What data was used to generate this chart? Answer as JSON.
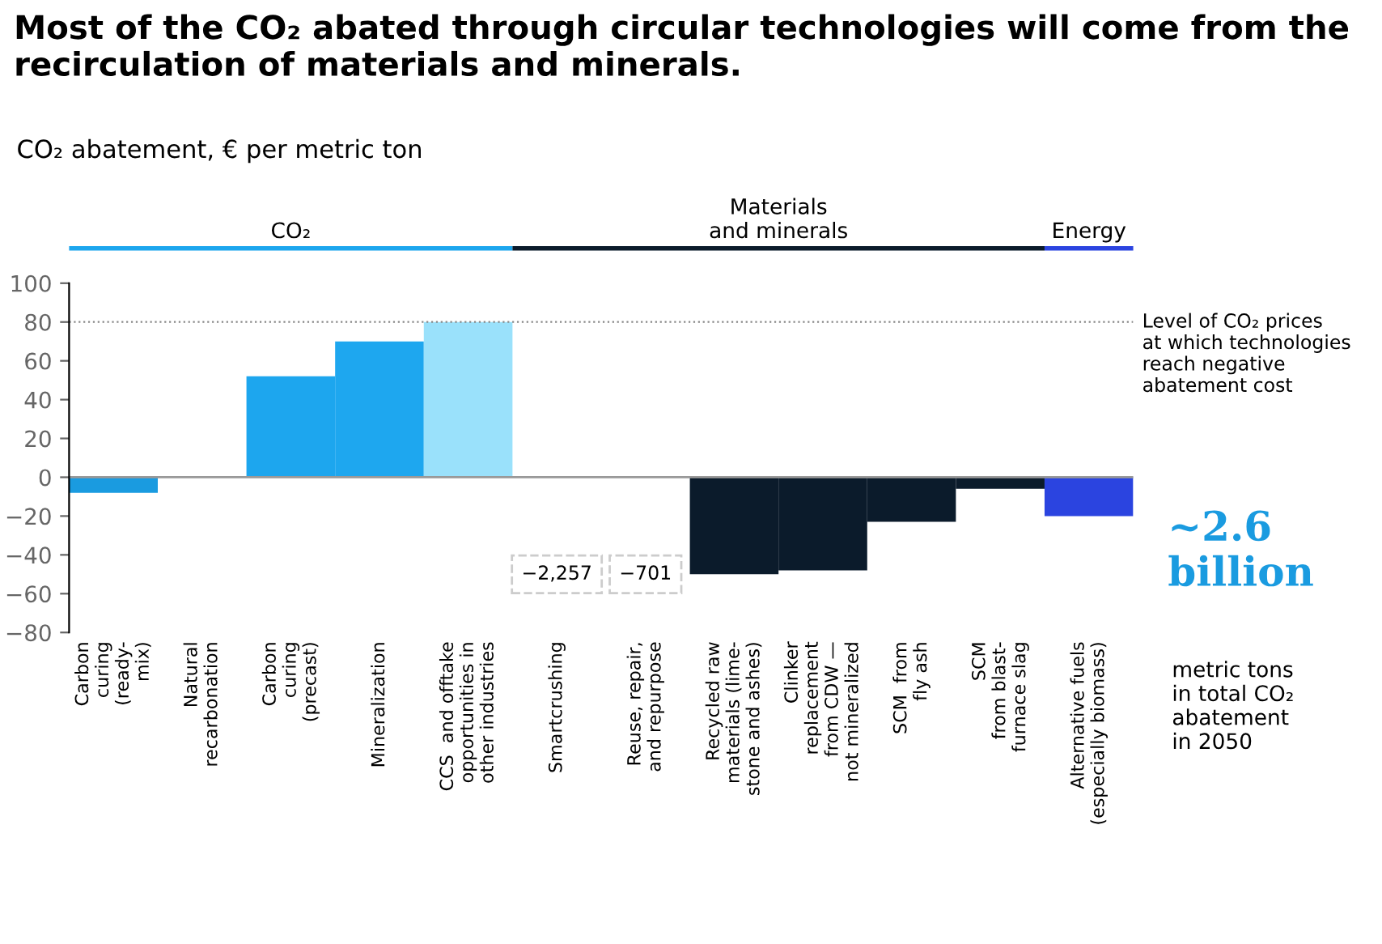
{
  "chart_data": {
    "type": "bar",
    "title": "Most of the CO₂ abated through circular technologies will come from the\nrecirculation of materials and minerals.",
    "ylabel": "CO₂ abatement, € per metric ton",
    "categories": [
      "Carbon\ncuring\n(ready-\nmix)",
      "Natural\nrecarbonation",
      "Carbon\ncuring\n(precast)",
      "Mineralization",
      "CCS  and offtake\nopportunities in\nother industries",
      "Smartcrushing",
      "Reuse, repair,\nand repurpose",
      "Recycled raw\nmaterials (lime-\nstone and ashes)",
      "Clinker\nreplacement\nfrom CDW —\nnot mineralized",
      "SCM  from\nfly ash",
      "SCM\nfrom blast-\nfurnace slag",
      "Alternative fuels\n(especially biomass)"
    ],
    "values": [
      -8,
      0,
      52,
      70,
      80,
      null,
      null,
      -50,
      -48,
      -23,
      -6,
      -20
    ],
    "colors": [
      "#1a9be0",
      "#1a9be0",
      "#1da6ee",
      "#1ea7ef",
      "#9ae1fb",
      "#0b1b2b",
      "#0b1b2b",
      "#0b1b2b",
      "#0b1b2b",
      "#0b1b2b",
      "#0b1b2b",
      "#2b44e0"
    ],
    "ylim": [
      -80,
      100
    ],
    "yticks": [
      -80,
      -60,
      -40,
      -20,
      0,
      20,
      40,
      60,
      80,
      100
    ],
    "grid": false,
    "ref_lines": [
      {
        "axis": "y",
        "value": 80,
        "label": "Level of CO₂ prices\nat which technologies\nreach negative\nabatement cost",
        "color": "#888888",
        "line_style": "dotted"
      }
    ],
    "annotations": [
      "CO₂",
      "Materials\nand minerals",
      "Energy",
      "−2,257",
      "−701",
      "~2.6\nbillion",
      "metric tons\nin total CO₂\nabatement\nin 2050"
    ]
  }
}
